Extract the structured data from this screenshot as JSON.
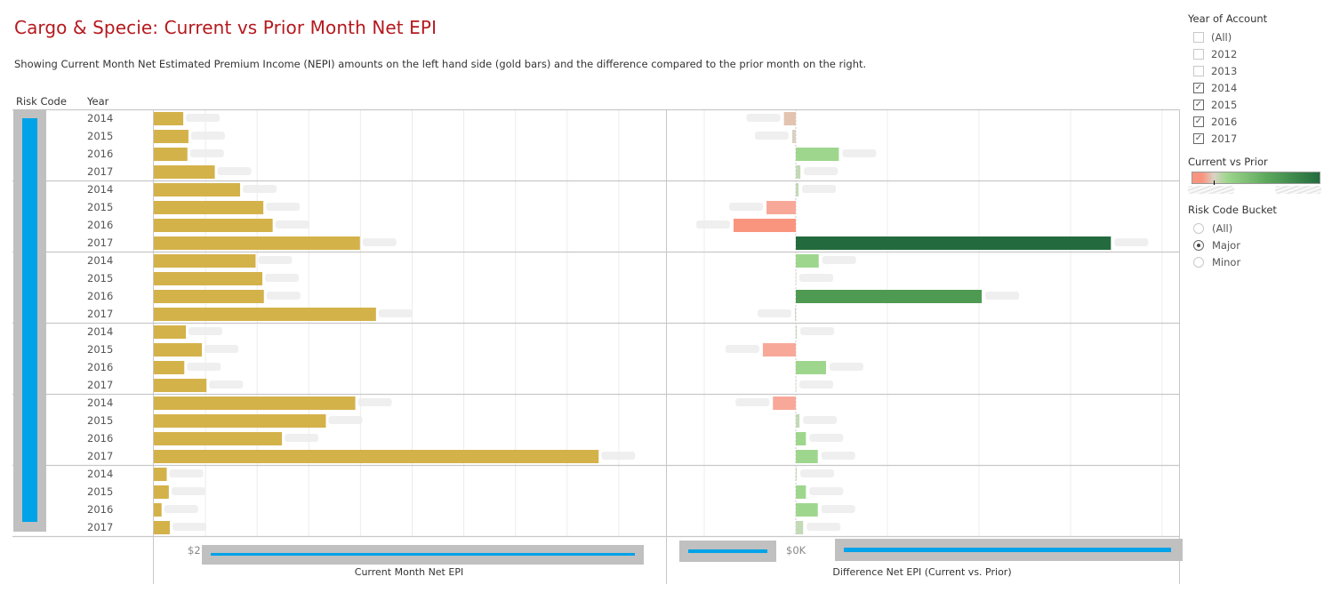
{
  "title": "Cargo & Specie:  Current vs Prior Month Net EPI",
  "subtitle": "Showing Current Month Net Estimated Premium Income (NEPI) amounts on the left hand side (gold bars) and the difference compared to the prior month on the right.",
  "headers": {
    "risk_code": "Risk Code",
    "year": "Year"
  },
  "filters": {
    "year_of_account": {
      "title": "Year of Account",
      "options": [
        {
          "label": "(All)",
          "checked": false
        },
        {
          "label": "2012",
          "checked": false
        },
        {
          "label": "2013",
          "checked": false
        },
        {
          "label": "2014",
          "checked": true
        },
        {
          "label": "2015",
          "checked": true
        },
        {
          "label": "2016",
          "checked": true
        },
        {
          "label": "2017",
          "checked": true
        }
      ]
    },
    "current_vs_prior": {
      "title": "Current vs Prior",
      "colors": [
        "#f9957f",
        "#d9d2c4",
        "#9fd68e",
        "#5aa65a",
        "#236b3e"
      ]
    },
    "risk_code_bucket": {
      "title": "Risk Code Bucket",
      "options": [
        {
          "label": "(All)",
          "selected": false
        },
        {
          "label": "Major",
          "selected": true
        },
        {
          "label": "Minor",
          "selected": false
        }
      ]
    }
  },
  "chart_data": [
    {
      "type": "bar",
      "orientation": "horizontal",
      "title": "Current Month Net EPI",
      "xlabel": "Current Month Net EPI",
      "tick_labels": [
        "$2"
      ],
      "units": "relative (gridline steps)",
      "xlim": [
        0,
        10
      ],
      "grid": true,
      "color": "#d4b24a",
      "groups": [
        {
          "years": [
            "2014",
            "2015",
            "2016",
            "2017"
          ],
          "values": [
            0.57,
            0.67,
            0.65,
            1.18
          ]
        },
        {
          "years": [
            "2014",
            "2015",
            "2016",
            "2017"
          ],
          "values": [
            1.67,
            2.12,
            2.3,
            3.99
          ]
        },
        {
          "years": [
            "2014",
            "2015",
            "2016",
            "2017"
          ],
          "values": [
            1.97,
            2.1,
            2.13,
            4.3
          ]
        },
        {
          "years": [
            "2014",
            "2015",
            "2016",
            "2017"
          ],
          "values": [
            0.62,
            0.93,
            0.59,
            1.02
          ]
        },
        {
          "years": [
            "2014",
            "2015",
            "2016",
            "2017"
          ],
          "values": [
            3.9,
            3.33,
            2.48,
            8.61
          ]
        },
        {
          "years": [
            "2014",
            "2015",
            "2016",
            "2017"
          ],
          "values": [
            0.25,
            0.29,
            0.15,
            0.31
          ]
        }
      ]
    },
    {
      "type": "bar",
      "orientation": "horizontal",
      "title": "Difference Net EPI (Current vs. Prior)",
      "xlabel": "Difference Net EPI (Current vs. Prior)",
      "tick_labels": [
        "$0K"
      ],
      "units": "relative (gridline steps)",
      "xlim": [
        -1.5,
        4.2
      ],
      "grid": true,
      "groups": [
        {
          "years": [
            "2014",
            "2015",
            "2016",
            "2017"
          ],
          "values": [
            -0.13,
            -0.04,
            0.47,
            0.05
          ]
        },
        {
          "years": [
            "2014",
            "2015",
            "2016",
            "2017"
          ],
          "values": [
            0.03,
            -0.32,
            -0.68,
            3.44
          ]
        },
        {
          "years": [
            "2014",
            "2015",
            "2016",
            "2017"
          ],
          "values": [
            0.25,
            0.0,
            2.03,
            -0.01
          ]
        },
        {
          "years": [
            "2014",
            "2015",
            "2016",
            "2017"
          ],
          "values": [
            0.01,
            -0.36,
            0.33,
            0.0
          ]
        },
        {
          "years": [
            "2014",
            "2015",
            "2016",
            "2017"
          ],
          "values": [
            -0.25,
            0.04,
            0.11,
            0.24
          ]
        },
        {
          "years": [
            "2014",
            "2015",
            "2016",
            "2017"
          ],
          "values": [
            0.01,
            0.11,
            0.24,
            0.08
          ]
        }
      ]
    }
  ]
}
